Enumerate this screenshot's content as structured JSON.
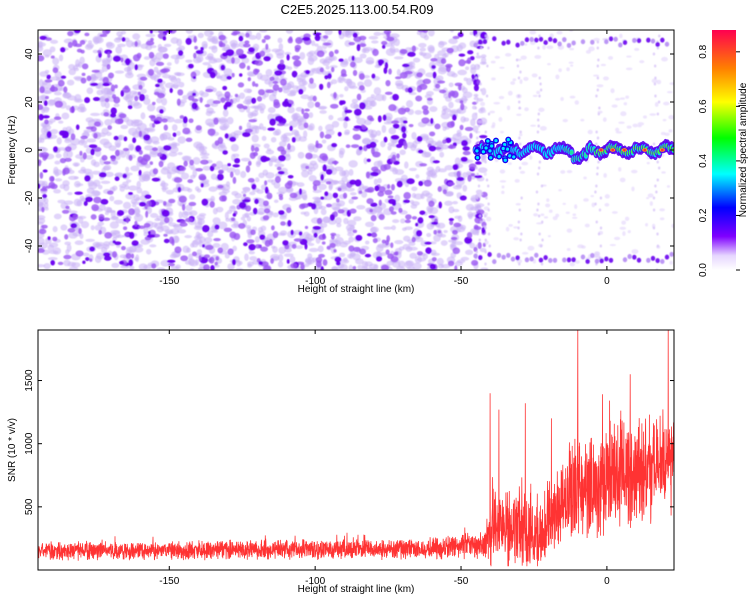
{
  "page": {
    "title": "C2E5.2025.113.00.54.R09"
  },
  "chart_data": [
    {
      "type": "heatmap",
      "xlabel": "Height of straight line (km)",
      "ylabel": "Frequency (Hz)",
      "xlim": [
        -195,
        23
      ],
      "ylim": [
        -50,
        50
      ],
      "xticks": [
        -150,
        -100,
        -50,
        0
      ],
      "yticks": [
        -40,
        -20,
        0,
        20,
        40
      ],
      "colorbar": {
        "label": "Normalized spectral amplitude",
        "range": [
          0,
          0.88
        ],
        "ticks": [
          0.0,
          0.2,
          0.4,
          0.6,
          0.8
        ],
        "colors": [
          "#ffffff",
          "#7f00ff",
          "#0000ff",
          "#00ffff",
          "#00ff00",
          "#ffff00",
          "#ff8000",
          "#ff0040"
        ]
      },
      "features": [
        {
          "kind": "broadband noise",
          "x_range": [
            -195,
            -45
          ],
          "y_range": [
            -50,
            50
          ]
        },
        {
          "kind": "signal line",
          "x_range": [
            -45,
            23
          ],
          "y": 0,
          "peak_amplitude": 0.85
        },
        {
          "kind": "aliased line",
          "x_range": [
            -45,
            23
          ],
          "y": 45
        },
        {
          "kind": "aliased line",
          "x_range": [
            -45,
            23
          ],
          "y": -45
        }
      ]
    },
    {
      "type": "line",
      "xlabel": "Height of straight line (km)",
      "ylabel": "SNR (10 * v/v)",
      "xlim": [
        -195,
        23
      ],
      "ylim": [
        0,
        1900
      ],
      "xticks": [
        -150,
        -100,
        -50,
        0
      ],
      "yticks": [
        500,
        1000,
        1500
      ],
      "color": "#ff3333",
      "envelope": [
        {
          "x": -195,
          "base": 150,
          "spread": 100
        },
        {
          "x": -60,
          "base": 170,
          "spread": 120
        },
        {
          "x": -42,
          "base": 200,
          "spread": 160
        },
        {
          "x": -40,
          "base": 350,
          "spread": 500
        },
        {
          "x": -22,
          "base": 300,
          "spread": 400
        },
        {
          "x": -18,
          "base": 500,
          "spread": 500
        },
        {
          "x": -10,
          "base": 650,
          "spread": 600
        },
        {
          "x": 23,
          "base": 850,
          "spread": 600
        }
      ],
      "peaks": [
        {
          "x": -40,
          "value": 1400
        },
        {
          "x": -37,
          "value": 1270
        },
        {
          "x": -28,
          "value": 1320
        },
        {
          "x": -19,
          "value": 1200
        },
        {
          "x": -10,
          "value": 1900
        },
        {
          "x": 8,
          "value": 1550
        },
        {
          "x": 21,
          "value": 1900
        }
      ]
    }
  ]
}
